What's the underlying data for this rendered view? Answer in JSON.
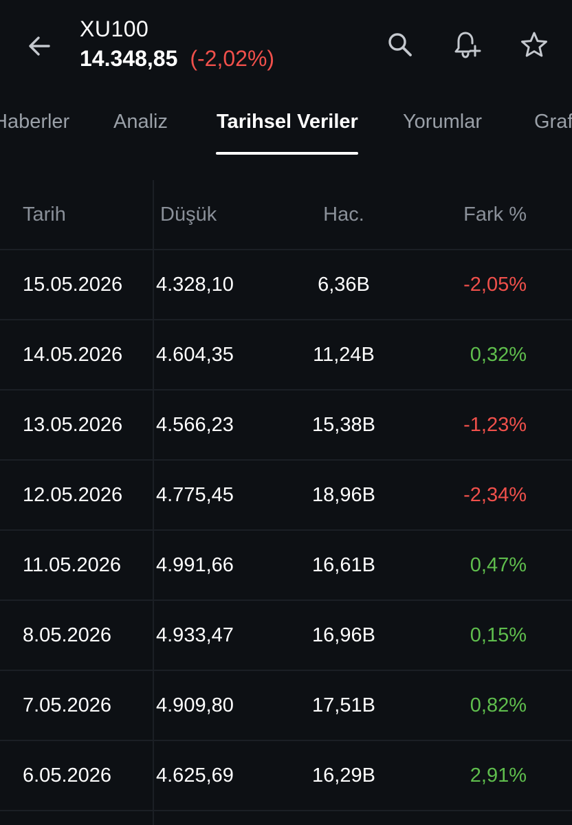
{
  "header": {
    "back_icon": "back-arrow-icon",
    "symbol": "XU100",
    "price": "14.348,85",
    "change": "(-2,02%)",
    "change_color": "#f0504b",
    "search_icon": "search-icon",
    "alert_icon": "add-alert-bell-icon",
    "favorite_icon": "star-outline-icon"
  },
  "tabs": [
    {
      "label": "Haberler",
      "active": false
    },
    {
      "label": "Analiz",
      "active": false
    },
    {
      "label": "Tarihsel Veriler",
      "active": true
    },
    {
      "label": "Yorumlar",
      "active": false
    },
    {
      "label": "Grafikler",
      "active": false
    }
  ],
  "table": {
    "columns": [
      "Tarih",
      "Düşük",
      "Hac.",
      "Fark %"
    ],
    "rows": [
      {
        "date": "15.05.2026",
        "low": "4.328,10",
        "volume": "6,36B",
        "change": "-2,05%",
        "direction": "down"
      },
      {
        "date": "14.05.2026",
        "low": "4.604,35",
        "volume": "11,24B",
        "change": "0,32%",
        "direction": "up"
      },
      {
        "date": "13.05.2026",
        "low": "4.566,23",
        "volume": "15,38B",
        "change": "-1,23%",
        "direction": "down"
      },
      {
        "date": "12.05.2026",
        "low": "4.775,45",
        "volume": "18,96B",
        "change": "-2,34%",
        "direction": "down"
      },
      {
        "date": "11.05.2026",
        "low": "4.991,66",
        "volume": "16,61B",
        "change": "0,47%",
        "direction": "up"
      },
      {
        "date": "8.05.2026",
        "low": "4.933,47",
        "volume": "16,96B",
        "change": "0,15%",
        "direction": "up"
      },
      {
        "date": "7.05.2026",
        "low": "4.909,80",
        "volume": "17,51B",
        "change": "0,82%",
        "direction": "up"
      },
      {
        "date": "6.05.2026",
        "low": "4.625,69",
        "volume": "16,29B",
        "change": "2,91%",
        "direction": "up"
      }
    ]
  },
  "colors": {
    "background": "#0d1014",
    "negative": "#f0504b",
    "positive": "#5fbe4d",
    "muted_text": "#9aa0a8"
  }
}
